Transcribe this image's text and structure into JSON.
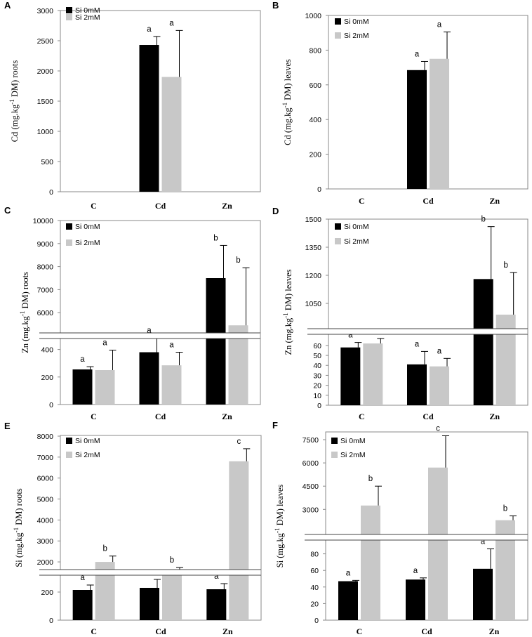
{
  "chart_data": [
    {
      "panel": "A",
      "type": "bar",
      "ylabel_main": "Cd (mg.kg",
      "ylabel_sup": "-1",
      "ylabel_tail": " DM)  roots",
      "categories": [
        "C",
        "Cd",
        "Zn"
      ],
      "legend": [
        "Si 0mM",
        "Si 2mM"
      ],
      "colors": [
        "#000000",
        "#c8c8c8"
      ],
      "segments": [
        {
          "range": [
            0,
            3000
          ],
          "ticks": [
            0,
            500,
            1000,
            1500,
            2000,
            2500,
            3000
          ],
          "tick_labels": [
            "0",
            "500",
            "1000",
            "1500",
            "2000",
            "2500",
            "3000"
          ]
        }
      ],
      "series": [
        {
          "name": "Si 0mM",
          "values": [
            null,
            2430,
            null
          ],
          "errors": [
            null,
            140,
            null
          ],
          "labels": [
            "",
            "a",
            ""
          ]
        },
        {
          "name": "Si 2mM",
          "values": [
            null,
            1900,
            null
          ],
          "errors": [
            null,
            770,
            null
          ],
          "labels": [
            "",
            "a",
            ""
          ]
        }
      ]
    },
    {
      "panel": "B",
      "type": "bar",
      "ylabel_main": "Cd (mg.kg",
      "ylabel_sup": "-1",
      "ylabel_tail": " DM)  leaves",
      "categories": [
        "C",
        "Cd",
        "Zn"
      ],
      "legend": [
        "Si 0mM",
        "Si 2mM"
      ],
      "colors": [
        "#000000",
        "#c8c8c8"
      ],
      "segments": [
        {
          "range": [
            0,
            1000
          ],
          "ticks": [
            0,
            200,
            400,
            600,
            800,
            1000
          ],
          "tick_labels": [
            "0",
            "200",
            "400",
            "600",
            "800",
            "1000"
          ]
        }
      ],
      "series": [
        {
          "name": "Si 0mM",
          "values": [
            null,
            685,
            null
          ],
          "errors": [
            null,
            50,
            null
          ],
          "labels": [
            "",
            "a",
            ""
          ]
        },
        {
          "name": "Si 2mM",
          "values": [
            null,
            750,
            null
          ],
          "errors": [
            null,
            155,
            null
          ],
          "labels": [
            "",
            "a",
            ""
          ]
        }
      ]
    },
    {
      "panel": "C",
      "type": "bar",
      "ylabel_main": "Zn (mg.kg",
      "ylabel_sup": "-1",
      "ylabel_tail": " DM)  roots",
      "categories": [
        "C",
        "Cd",
        "Zn"
      ],
      "legend": [
        "Si 0mM",
        "Si 2mM"
      ],
      "colors": [
        "#000000",
        "#c8c8c8"
      ],
      "segments": [
        {
          "range": [
            0,
            500
          ],
          "ticks": [
            0,
            200,
            400
          ],
          "tick_labels": [
            "0",
            "200",
            "400"
          ]
        },
        {
          "range": [
            5000,
            10000
          ],
          "ticks": [
            6000,
            7000,
            8000,
            9000,
            10000
          ],
          "tick_labels": [
            "6000",
            "7000",
            "8000",
            "9000",
            "10000"
          ]
        }
      ],
      "series": [
        {
          "name": "Si 0mM",
          "values": [
            255,
            380,
            7500
          ],
          "errors": [
            20,
            105,
            1420
          ],
          "labels": [
            "a",
            "a",
            "b"
          ]
        },
        {
          "name": "Si 2mM",
          "values": [
            250,
            285,
            5450
          ],
          "errors": [
            145,
            95,
            2500
          ],
          "labels": [
            "a",
            "a",
            "b"
          ]
        }
      ]
    },
    {
      "panel": "D",
      "type": "bar",
      "ylabel_main": "Zn (mg.kg",
      "ylabel_sup": "-1",
      "ylabel_tail": " DM)  leaves",
      "categories": [
        "C",
        "Cd",
        "Zn"
      ],
      "legend": [
        "Si 0mM",
        "Si 2mM"
      ],
      "colors": [
        "#000000",
        "#c8c8c8"
      ],
      "segments": [
        {
          "range": [
            0,
            74
          ],
          "ticks": [
            0,
            10,
            20,
            30,
            40,
            50,
            60
          ],
          "tick_labels": [
            "0",
            "10",
            "20",
            "30",
            "40",
            "50",
            "60"
          ]
        },
        {
          "range": [
            900,
            1500
          ],
          "ticks": [
            1050,
            1200,
            1350,
            1500
          ],
          "tick_labels": [
            "1050",
            "1200",
            "1350",
            "1500"
          ]
        }
      ],
      "series": [
        {
          "name": "Si 0mM",
          "values": [
            58,
            41,
            1180
          ],
          "errors": [
            5,
            13,
            280
          ],
          "labels": [
            "a",
            "a",
            "b"
          ]
        },
        {
          "name": "Si 2mM",
          "values": [
            62,
            39,
            990
          ],
          "errors": [
            5,
            8,
            225
          ],
          "labels": [
            "a",
            "a",
            "b"
          ]
        }
      ]
    },
    {
      "panel": "E",
      "type": "bar",
      "ylabel_main": "Si (mg.kg",
      "ylabel_sup": "-1",
      "ylabel_tail": " DM)  roots",
      "categories": [
        "C",
        "Cd",
        "Zn"
      ],
      "legend": [
        "Si 0mM",
        "Si 2mM"
      ],
      "colors": [
        "#000000",
        "#c8c8c8"
      ],
      "segments": [
        {
          "range": [
            0,
            340
          ],
          "ticks": [
            0,
            200
          ],
          "tick_labels": [
            "0",
            "200"
          ]
        },
        {
          "range": [
            1500,
            8000
          ],
          "ticks": [
            2000,
            3000,
            4000,
            5000,
            6000,
            7000,
            8000
          ],
          "tick_labels": [
            "2000",
            "3000",
            "4000",
            "5000",
            "6000",
            "7000",
            "8000"
          ]
        }
      ],
      "series": [
        {
          "name": "Si 0mM",
          "values": [
            215,
            230,
            220
          ],
          "errors": [
            35,
            60,
            40
          ],
          "labels": [
            "a",
            "a",
            "a"
          ]
        },
        {
          "name": "Si 2mM",
          "values": [
            2000,
            1600,
            6800
          ],
          "errors": [
            280,
            130,
            600
          ],
          "labels": [
            "b",
            "b",
            "c"
          ]
        }
      ]
    },
    {
      "panel": "F",
      "type": "bar",
      "ylabel_main": "Si (mg.kg",
      "ylabel_sup": "-1",
      "ylabel_tail": " DM)  leaves",
      "categories": [
        "C",
        "Cd",
        "Zn"
      ],
      "legend": [
        "Si 0mM",
        "Si 2mM"
      ],
      "colors": [
        "#000000",
        "#c8c8c8"
      ],
      "segments": [
        {
          "range": [
            0,
            100
          ],
          "ticks": [
            0,
            20,
            40,
            60,
            80
          ],
          "tick_labels": [
            "0",
            "20",
            "40",
            "60",
            "80"
          ]
        },
        {
          "range": [
            1200,
            8000
          ],
          "ticks": [
            3000,
            4500,
            6000,
            7500
          ],
          "tick_labels": [
            "3000",
            "4500",
            "6000",
            "7500"
          ]
        }
      ],
      "series": [
        {
          "name": "Si 0mM",
          "values": [
            47,
            49,
            62
          ],
          "errors": [
            1,
            2,
            24
          ],
          "labels": [
            "a",
            "a",
            "a"
          ]
        },
        {
          "name": "Si 2mM",
          "values": [
            3250,
            5700,
            2300
          ],
          "errors": [
            1250,
            2050,
            280
          ],
          "labels": [
            "b",
            "c",
            "b"
          ]
        }
      ]
    }
  ]
}
